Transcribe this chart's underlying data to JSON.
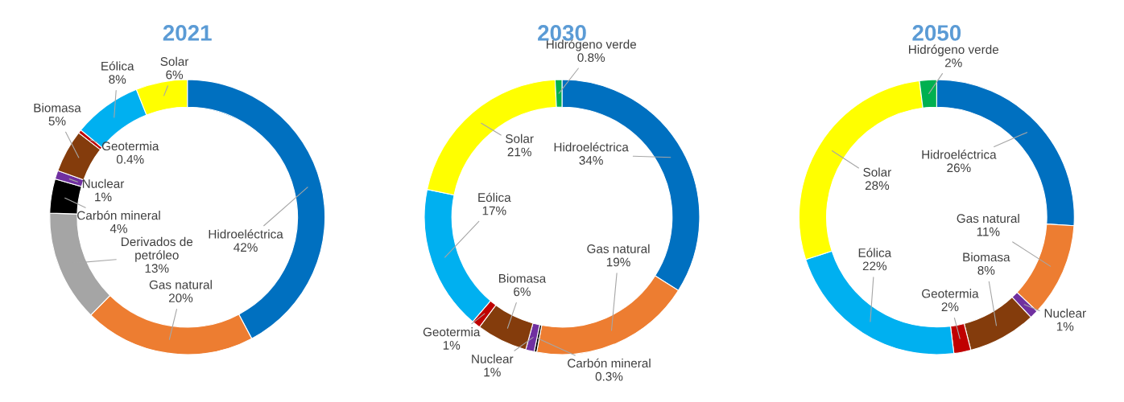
{
  "chart_data": [
    {
      "type": "donut",
      "title": "2021",
      "categories": [
        "Hidroeléctrica",
        "Gas natural",
        "Derivados de petróleo",
        "Carbón mineral",
        "Nuclear",
        "Biomasa",
        "Geotermia",
        "Eólica",
        "Solar"
      ],
      "values": [
        42,
        20,
        13,
        4,
        1,
        5,
        0.4,
        8,
        6
      ],
      "value_labels": [
        "42%",
        "20%",
        "13%",
        "4%",
        "1%",
        "5%",
        "0.4%",
        "8%",
        "6%"
      ],
      "colors": [
        "#0070c0",
        "#ed7d31",
        "#a5a5a5",
        "#000000",
        "#7030a0",
        "#843c0c",
        "#c00000",
        "#00b0f0",
        "#ffff00"
      ]
    },
    {
      "type": "donut",
      "title": "2030",
      "categories": [
        "Hidroeléctrica",
        "Gas natural",
        "Carbón mineral",
        "Nuclear",
        "Biomasa",
        "Geotermia",
        "Eólica",
        "Solar",
        "Hidrógeno verde"
      ],
      "values": [
        34,
        19,
        0.3,
        1,
        6,
        1,
        17,
        21,
        0.8
      ],
      "value_labels": [
        "34%",
        "19%",
        "0.3%",
        "1%",
        "6%",
        "1%",
        "17%",
        "21%",
        "0.8%"
      ],
      "colors": [
        "#0070c0",
        "#ed7d31",
        "#000000",
        "#7030a0",
        "#843c0c",
        "#c00000",
        "#00b0f0",
        "#ffff00",
        "#00b050"
      ]
    },
    {
      "type": "donut",
      "title": "2050",
      "categories": [
        "Hidroeléctrica",
        "Gas natural",
        "Nuclear",
        "Biomasa",
        "Geotermia",
        "Eólica",
        "Solar",
        "Hidrógeno verde"
      ],
      "values": [
        26,
        11,
        1,
        8,
        2,
        22,
        28,
        2
      ],
      "value_labels": [
        "26%",
        "11%",
        "1%",
        "8%",
        "2%",
        "22%",
        "28%",
        "2%"
      ],
      "colors": [
        "#0070c0",
        "#ed7d31",
        "#7030a0",
        "#843c0c",
        "#c00000",
        "#00b0f0",
        "#ffff00",
        "#00b050"
      ]
    }
  ]
}
